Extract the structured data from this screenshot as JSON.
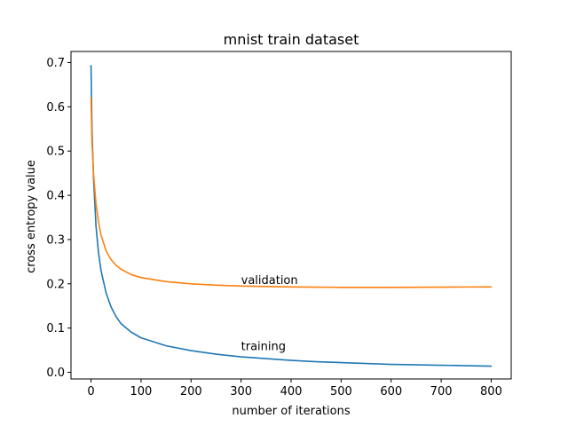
{
  "chart_data": {
    "type": "line",
    "title": "mnist train dataset",
    "xlabel": "number of iterations",
    "ylabel": "cross entropy value",
    "xlim": [
      -40,
      840
    ],
    "ylim": [
      -0.015,
      0.725
    ],
    "xticks": [
      0,
      100,
      200,
      300,
      400,
      500,
      600,
      700,
      800
    ],
    "yticks": [
      0.0,
      0.1,
      0.2,
      0.3,
      0.4,
      0.5,
      0.6,
      0.7
    ],
    "ytick_labels": [
      "0.0",
      "0.1",
      "0.2",
      "0.3",
      "0.4",
      "0.5",
      "0.6",
      "0.7"
    ],
    "grid": false,
    "series": [
      {
        "name": "training",
        "color": "#1f77b4",
        "x": [
          0,
          2,
          5,
          10,
          15,
          20,
          30,
          40,
          50,
          60,
          80,
          100,
          150,
          200,
          250,
          300,
          350,
          400,
          450,
          500,
          550,
          600,
          650,
          700,
          750,
          800
        ],
        "y": [
          0.693,
          0.55,
          0.44,
          0.33,
          0.27,
          0.23,
          0.18,
          0.148,
          0.126,
          0.11,
          0.091,
          0.078,
          0.06,
          0.049,
          0.041,
          0.035,
          0.031,
          0.027,
          0.024,
          0.022,
          0.02,
          0.018,
          0.017,
          0.016,
          0.015,
          0.014
        ]
      },
      {
        "name": "validation",
        "color": "#ff7f0e",
        "x": [
          0,
          2,
          5,
          10,
          15,
          20,
          30,
          40,
          50,
          60,
          80,
          100,
          150,
          200,
          250,
          300,
          350,
          400,
          450,
          500,
          550,
          600,
          650,
          700,
          750,
          800
        ],
        "y": [
          0.62,
          0.52,
          0.45,
          0.38,
          0.34,
          0.31,
          0.275,
          0.255,
          0.242,
          0.233,
          0.221,
          0.214,
          0.205,
          0.2,
          0.197,
          0.195,
          0.194,
          0.193,
          0.1925,
          0.192,
          0.192,
          0.192,
          0.1922,
          0.1925,
          0.1928,
          0.193
        ]
      }
    ],
    "annotations": [
      {
        "text": "validation",
        "x": 300,
        "y": 0.2
      },
      {
        "text": "training",
        "x": 300,
        "y": 0.05
      }
    ]
  }
}
